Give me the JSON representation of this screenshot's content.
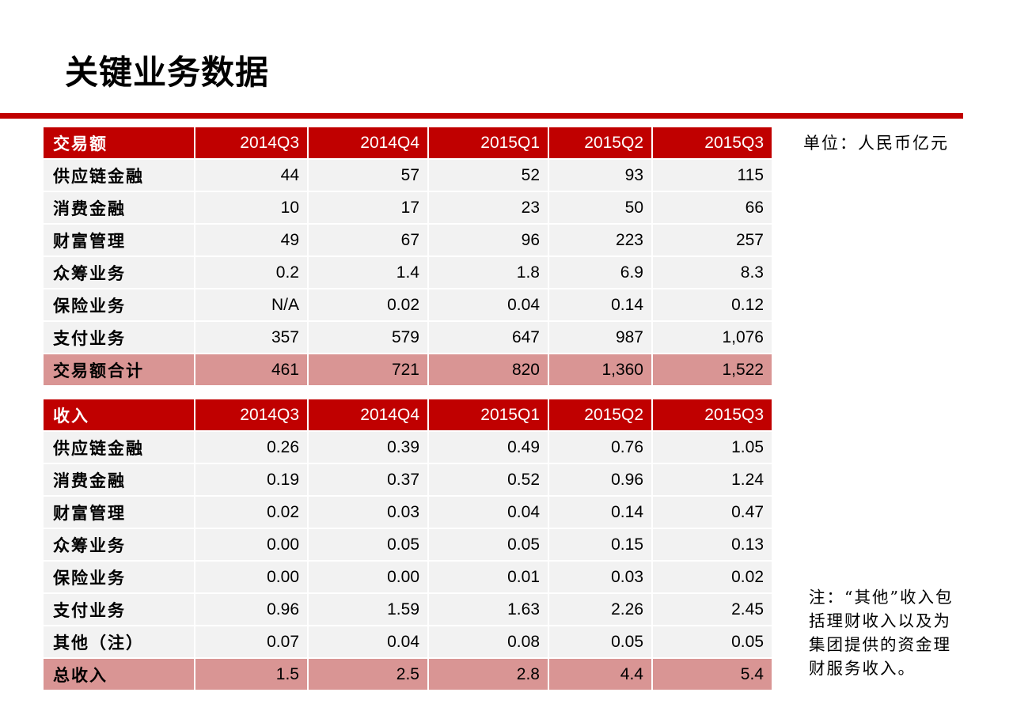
{
  "title": "关键业务数据",
  "unit": "单位：人民币亿元",
  "note": "注：“其他”收入包括理财收入以及为集团提供的资金理财服务收入。",
  "colors": {
    "accent": "#c00000",
    "total_row": "#d99594",
    "row_bg": "#f2f2f2"
  },
  "transaction_table": {
    "header": [
      "交易额",
      "2014Q3",
      "2014Q4",
      "2015Q1",
      "2015Q2",
      "2015Q3"
    ],
    "rows": [
      [
        "供应链金融",
        "44",
        "57",
        "52",
        "93",
        "115"
      ],
      [
        "消费金融",
        "10",
        "17",
        "23",
        "50",
        "66"
      ],
      [
        "财富管理",
        "49",
        "67",
        "96",
        "223",
        "257"
      ],
      [
        "众筹业务",
        "0.2",
        "1.4",
        "1.8",
        "6.9",
        "8.3"
      ],
      [
        "保险业务",
        "N/A",
        "0.02",
        "0.04",
        "0.14",
        "0.12"
      ],
      [
        "支付业务",
        "357",
        "579",
        "647",
        "987",
        "1,076"
      ]
    ],
    "total": [
      "交易额合计",
      "461",
      "721",
      "820",
      "1,360",
      "1,522"
    ]
  },
  "revenue_table": {
    "header": [
      "收入",
      "2014Q3",
      "2014Q4",
      "2015Q1",
      "2015Q2",
      "2015Q3"
    ],
    "rows": [
      [
        "供应链金融",
        "0.26",
        "0.39",
        "0.49",
        "0.76",
        "1.05"
      ],
      [
        "消费金融",
        "0.19",
        "0.37",
        "0.52",
        "0.96",
        "1.24"
      ],
      [
        "财富管理",
        "0.02",
        "0.03",
        "0.04",
        "0.14",
        "0.47"
      ],
      [
        "众筹业务",
        "0.00",
        "0.05",
        "0.05",
        "0.15",
        "0.13"
      ],
      [
        "保险业务",
        "0.00",
        "0.00",
        "0.01",
        "0.03",
        "0.02"
      ],
      [
        "支付业务",
        "0.96",
        "1.59",
        "1.63",
        "2.26",
        "2.45"
      ],
      [
        "其他（注）",
        "0.07",
        "0.04",
        "0.08",
        "0.05",
        "0.05"
      ]
    ],
    "total": [
      "总收入",
      "1.5",
      "2.5",
      "2.8",
      "4.4",
      "5.4"
    ]
  }
}
